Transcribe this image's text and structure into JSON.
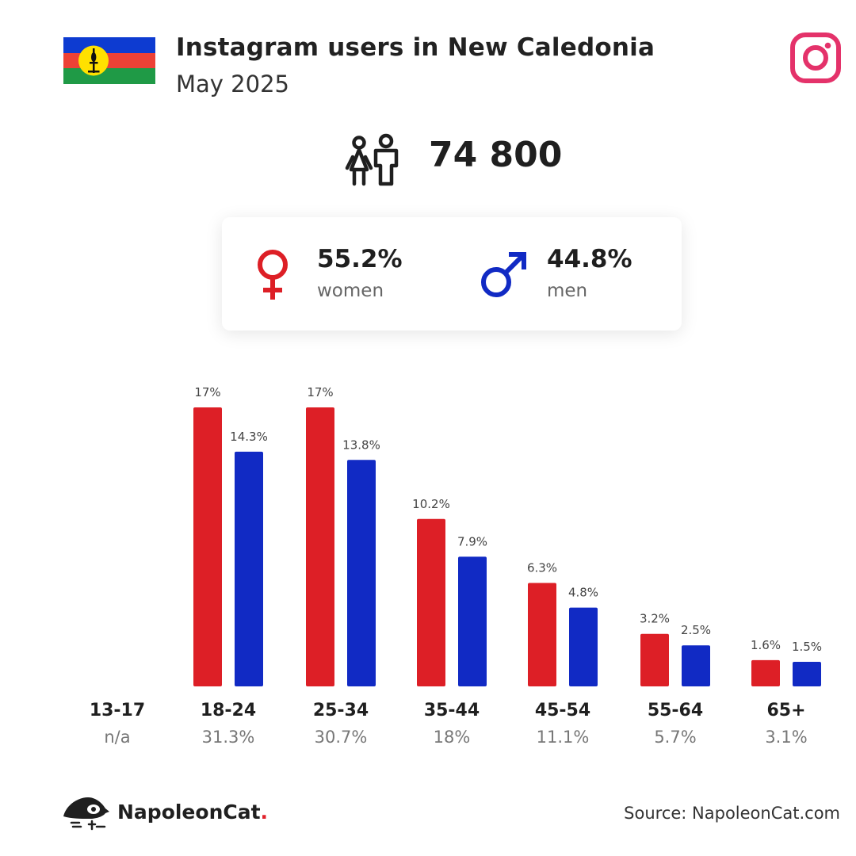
{
  "header": {
    "title": "Instagram users in New Caledonia",
    "subtitle": "May 2025"
  },
  "summary": {
    "total_users": "74 800",
    "women_pct": "55.2%",
    "women_label": "women",
    "men_pct": "44.8%",
    "men_label": "men"
  },
  "colors": {
    "women": "#dd1f26",
    "men": "#112ac4",
    "instagram": "#e4326a"
  },
  "icons": [
    "flag-icon",
    "instagram-icon",
    "people-icon",
    "female-icon",
    "male-icon",
    "napoleoncat-logo"
  ],
  "chart_data": {
    "type": "bar",
    "categories": [
      "13-17",
      "18-24",
      "25-34",
      "35-44",
      "45-54",
      "55-64",
      "65+"
    ],
    "category_totals": [
      "n/a",
      "31.3%",
      "30.7%",
      "18%",
      "11.1%",
      "5.7%",
      "3.1%"
    ],
    "series": [
      {
        "values": [
          null,
          17,
          17,
          10.2,
          6.3,
          3.2,
          1.6
        ],
        "labels": [
          "",
          "17%",
          "17%",
          "10.2%",
          "6.3%",
          "3.2%",
          "1.6%"
        ]
      },
      {
        "values": [
          null,
          14.3,
          13.8,
          7.9,
          4.8,
          2.5,
          1.5
        ],
        "labels": [
          "",
          "14.3%",
          "13.8%",
          "7.9%",
          "4.8%",
          "2.5%",
          "1.5%"
        ]
      }
    ],
    "ylim": [
      0,
      17
    ],
    "grid": false
  },
  "footer": {
    "brand": "NapoleonCat",
    "brand_dot": ".",
    "source": "Source: NapoleonCat.com"
  }
}
